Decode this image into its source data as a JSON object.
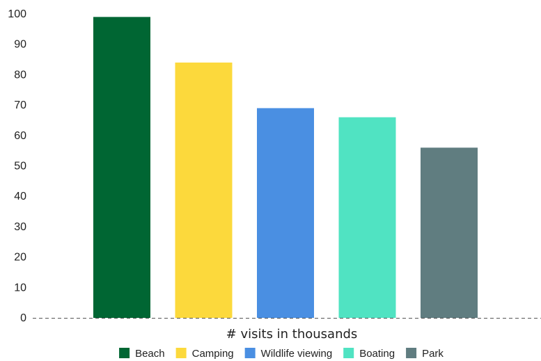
{
  "chart_data": {
    "type": "bar",
    "title": "",
    "xlabel": "# visits in thousands",
    "ylabel": "",
    "ylim": [
      0,
      100
    ],
    "yticks": [
      0,
      10,
      20,
      30,
      40,
      50,
      60,
      70,
      80,
      90,
      100
    ],
    "grid": false,
    "legend_position": "bottom",
    "categories": [
      "Beach",
      "Camping",
      "Wildlife viewing",
      "Boating",
      "Park"
    ],
    "values": [
      99,
      84,
      69,
      66,
      56
    ],
    "colors": [
      "#006633",
      "#fcd93c",
      "#4a8fe2",
      "#50e3c2",
      "#607d80"
    ]
  }
}
